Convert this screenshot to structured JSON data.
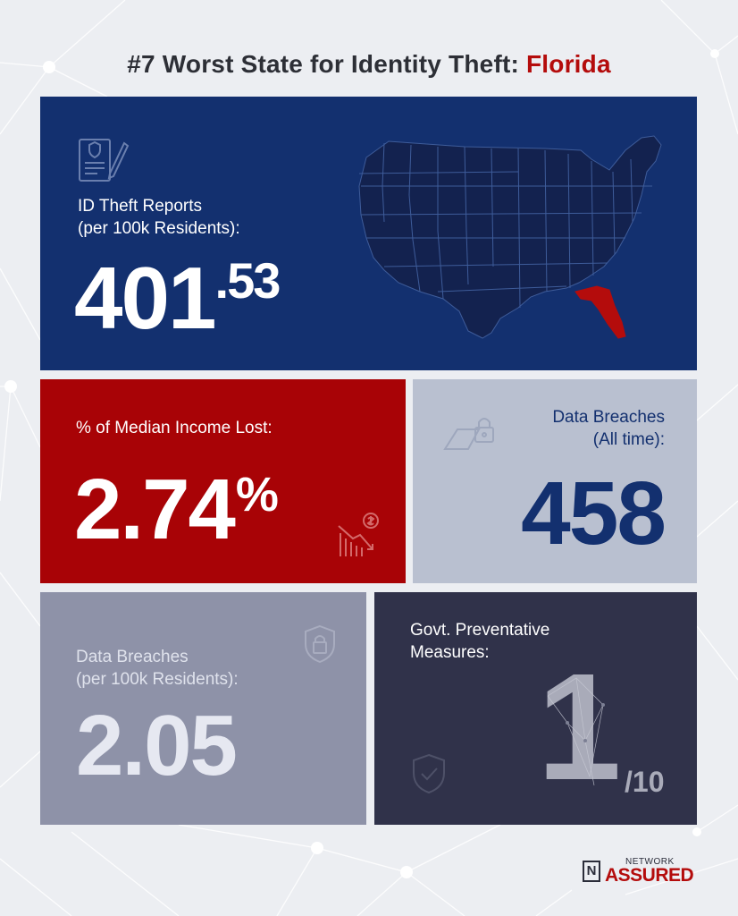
{
  "title": {
    "prefix": "#7 Worst State for Identity Theft: ",
    "state": "Florida"
  },
  "colors": {
    "navy": "#13306f",
    "red": "#a80306",
    "light_gray_blue": "#b9c0d0",
    "slate": "#8e92a8",
    "dark_slate": "#30324a",
    "florida_highlight": "#b40c0c"
  },
  "id_theft": {
    "label_line1": "ID Theft Reports",
    "label_line2": "(per 100k Residents):",
    "value_main": "401",
    "value_decimal": ".53",
    "icon": "report-document-icon",
    "map": "us-states-map-icon",
    "highlighted_state": "Florida"
  },
  "income_lost": {
    "label": "% of Median Income Lost:",
    "value_main": "2.74",
    "value_unit": "%",
    "icon": "declining-money-chart-icon"
  },
  "breaches_all_time": {
    "label_line1": "Data Breaches",
    "label_line2": "(All time):",
    "value": "458",
    "icon": "open-laptop-lock-icon"
  },
  "breaches_per_100k": {
    "label_line1": "Data Breaches",
    "label_line2": "(per 100k Residents):",
    "value": "2.05",
    "icon": "shield-lock-icon"
  },
  "govt_measures": {
    "label_line1": "Govt. Preventative",
    "label_line2": "Measures:",
    "value": "1",
    "denominator": "/10",
    "icon": "shield-check-icon"
  },
  "brand": {
    "top": "NETWORK",
    "main": "ASSURED",
    "mark": "N"
  }
}
